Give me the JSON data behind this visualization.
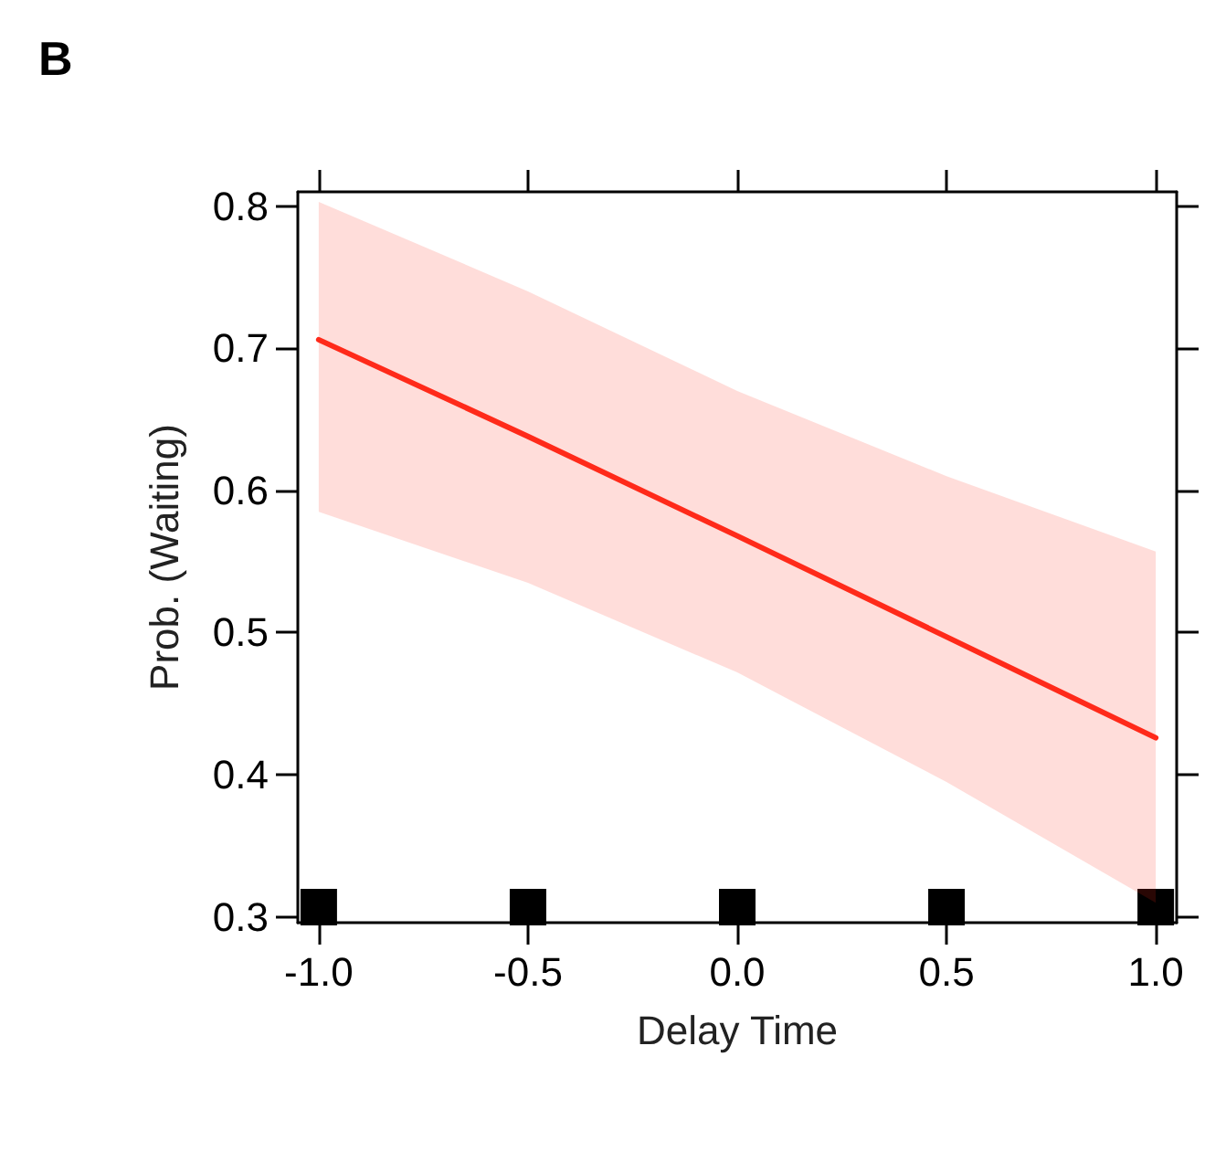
{
  "chart_data": {
    "type": "line",
    "title": "B",
    "xlabel": "Delay Time",
    "ylabel": "Prob. (Waiting)",
    "x": [
      -1,
      -0.5,
      0,
      0.5,
      1
    ],
    "series": [
      {
        "color": "#ff2a1a",
        "values": [
          0.706,
          0.638,
          0.568,
          0.497,
          0.426
        ],
        "lower": [
          0.585,
          0.535,
          0.472,
          0.395,
          0.31
        ],
        "upper": [
          0.803,
          0.74,
          0.67,
          0.61,
          0.557
        ]
      },
      {
        "type": "scatter",
        "color": "#000000",
        "marker": "square",
        "values": [
          0.307,
          0.307,
          0.307,
          0.307,
          0.307
        ]
      }
    ],
    "xlim": [
      -1.05,
      1.05
    ],
    "ylim": [
      0.296,
      0.81
    ],
    "xticks": [
      {
        "value": -1,
        "label": "-1.0"
      },
      {
        "value": -0.5,
        "label": "-0.5"
      },
      {
        "value": 0,
        "label": "0.0"
      },
      {
        "value": 0.5,
        "label": "0.5"
      },
      {
        "value": 1,
        "label": "1.0"
      }
    ],
    "yticks": [
      0.3,
      0.4,
      0.5,
      0.6,
      0.7,
      0.8
    ],
    "tick_labels": "xy",
    "grid": false,
    "marker": "none",
    "line_style": "solid"
  }
}
